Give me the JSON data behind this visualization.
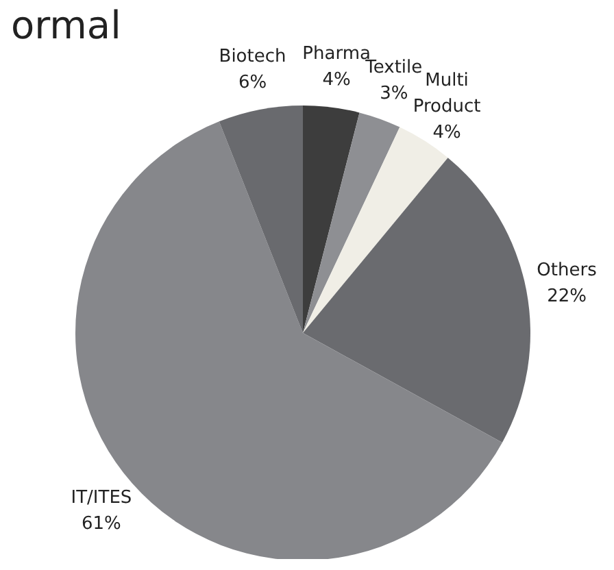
{
  "chart_data": {
    "type": "pie",
    "title": "ormal",
    "categories": [
      "Pharma",
      "Textile",
      "Multi Product",
      "Others",
      "IT/ITES",
      "Biotech"
    ],
    "values": [
      4,
      3,
      4,
      22,
      61,
      6
    ],
    "value_labels": [
      "4%",
      "3%",
      "4%",
      "22%",
      "61%",
      "6%"
    ],
    "colors": [
      "#3d3d3d",
      "#8e8f93",
      "#f0eee6",
      "#6a6b6f",
      "#86878b",
      "#696a6e"
    ],
    "legend": false
  }
}
